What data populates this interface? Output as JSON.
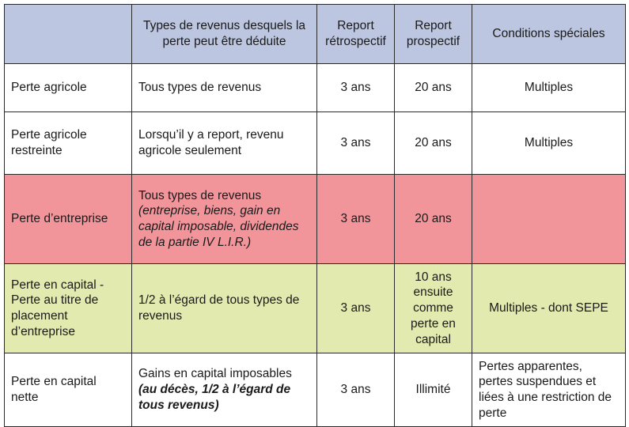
{
  "headers": {
    "col0": "",
    "col1": "Types de revenus desquels la perte peut être déduite",
    "col2": "Report rétrospectif",
    "col3": "Report prospectif",
    "col4": "Conditions spéciales"
  },
  "rows": [
    {
      "type": "Perte agricole",
      "revenus": "Tous types de revenus",
      "revenus_note": "",
      "retro": "3 ans",
      "prosp": "20 ans",
      "conditions": "Multiples"
    },
    {
      "type": "Perte agricole restreinte",
      "revenus": "Lorsqu’il y a report, revenu agricole seulement",
      "revenus_note": "",
      "retro": "3 ans",
      "prosp": "20 ans",
      "conditions": "Multiples"
    },
    {
      "type": "Perte d’entreprise",
      "revenus": "Tous types de revenus",
      "revenus_note": "(entreprise, biens, gain en capital imposable, dividendes de la partie IV L.I.R.)",
      "retro": "3 ans",
      "prosp": "20 ans",
      "conditions": ""
    },
    {
      "type": "Perte en capital - Perte au titre de placement d’entreprise",
      "revenus": "1/2 à l’égard de tous types de revenus",
      "revenus_note": "",
      "retro": "3 ans",
      "prosp": "10 ans ensuite comme perte en capital",
      "conditions": "Multiples - dont SEPE"
    },
    {
      "type": "Perte en capital nette",
      "revenus": "Gains en capital imposables",
      "revenus_note": "(au décès, 1/2 à l’égard de tous revenus)",
      "retro": "3 ans",
      "prosp": "Illimité",
      "conditions": "Pertes apparentes, pertes suspendues et liées à une restriction de perte"
    }
  ],
  "colors": {
    "header_bg": "#bcc6e0",
    "entreprise_row_bg": "#f2959b",
    "capital_row_bg": "#e2eab0",
    "border": "#2a2a2a"
  }
}
